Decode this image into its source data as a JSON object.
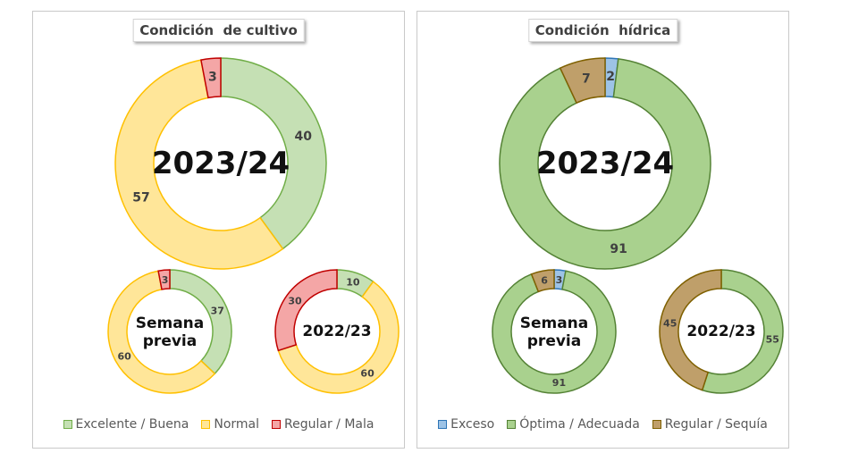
{
  "chart_data": [
    {
      "type": "donut",
      "title": "Condición  de cultivo",
      "legend_position": "bottom",
      "categories": [
        "Excelente / Buena",
        "Normal",
        "Regular / Mala"
      ],
      "colors": [
        "#c5e0b4",
        "#ffe699",
        "#f4a6a6"
      ],
      "stroke_colors": [
        "#70ad47",
        "#ffc000",
        "#c00000"
      ],
      "rings": [
        {
          "name": "2023/24",
          "values": [
            40,
            57,
            3
          ]
        },
        {
          "name": "Semana previa",
          "values": [
            37,
            60,
            3
          ]
        },
        {
          "name": "2022/23",
          "values": [
            10,
            60,
            30
          ]
        }
      ]
    },
    {
      "type": "donut",
      "title": "Condición  hídrica",
      "legend_position": "bottom",
      "categories": [
        "Exceso",
        "Óptima / Adecuada",
        "Regular / Sequía"
      ],
      "colors": [
        "#9dc3e6",
        "#a9d18e",
        "#bf9f6a"
      ],
      "stroke_colors": [
        "#2e75b6",
        "#548235",
        "#7f6000"
      ],
      "rings": [
        {
          "name": "2023/24",
          "values": [
            2,
            91,
            7
          ]
        },
        {
          "name": "Semana previa",
          "values": [
            3,
            91,
            6
          ]
        },
        {
          "name": "2022/23",
          "values": [
            0,
            55,
            45
          ]
        }
      ]
    }
  ]
}
